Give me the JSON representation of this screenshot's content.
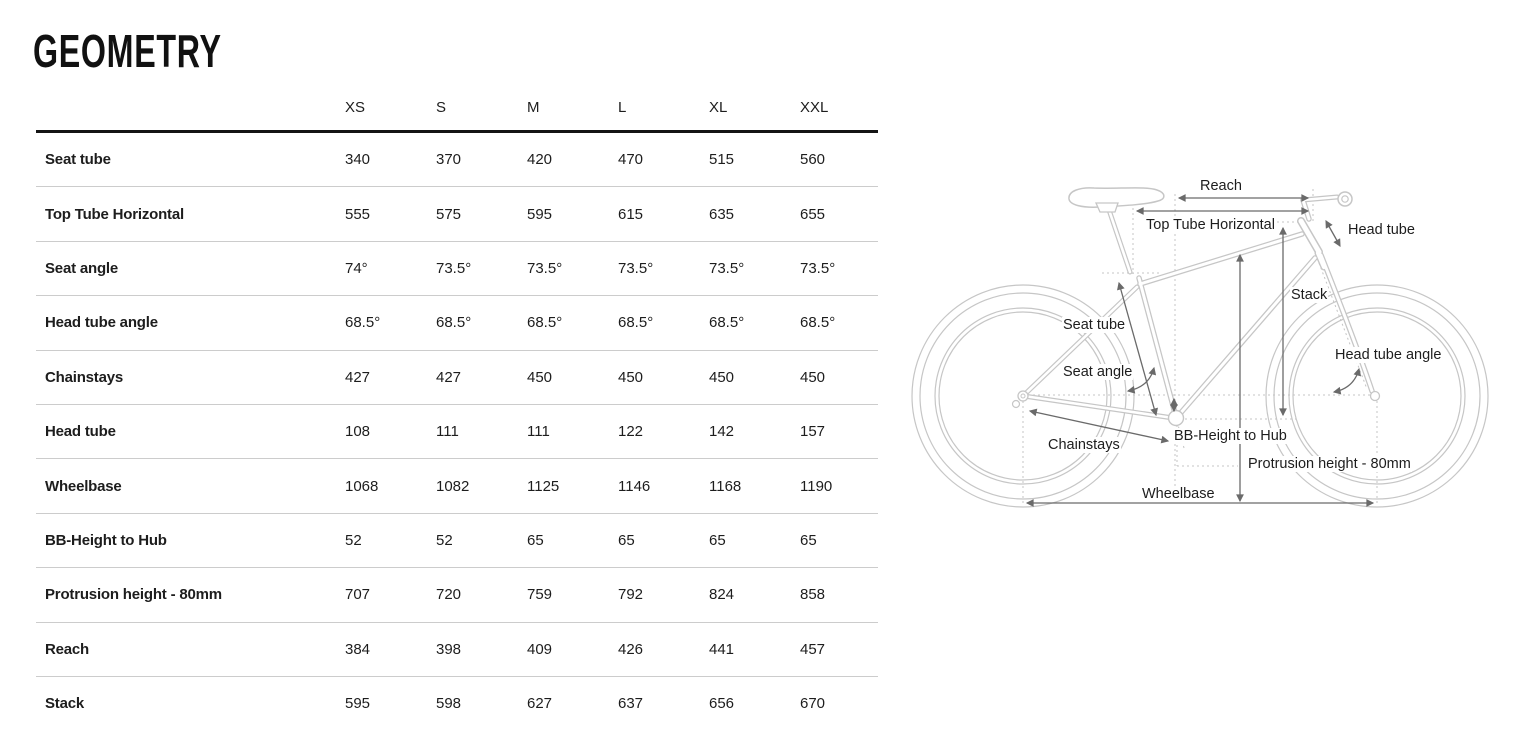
{
  "page": {
    "title": "GEOMETRY"
  },
  "table": {
    "size_headers": [
      "XS",
      "S",
      "M",
      "L",
      "XL",
      "XXL"
    ],
    "rows": [
      {
        "label": "Seat tube",
        "values": [
          "340",
          "370",
          "420",
          "470",
          "515",
          "560"
        ]
      },
      {
        "label": "Top Tube Horizontal",
        "values": [
          "555",
          "575",
          "595",
          "615",
          "635",
          "655"
        ]
      },
      {
        "label": "Seat angle",
        "values": [
          "74°",
          "73.5°",
          "73.5°",
          "73.5°",
          "73.5°",
          "73.5°"
        ]
      },
      {
        "label": "Head tube angle",
        "values": [
          "68.5°",
          "68.5°",
          "68.5°",
          "68.5°",
          "68.5°",
          "68.5°"
        ]
      },
      {
        "label": "Chainstays",
        "values": [
          "427",
          "427",
          "450",
          "450",
          "450",
          "450"
        ]
      },
      {
        "label": "Head tube",
        "values": [
          "108",
          "111",
          "111",
          "122",
          "142",
          "157"
        ]
      },
      {
        "label": "Wheelbase",
        "values": [
          "1068",
          "1082",
          "1125",
          "1146",
          "1168",
          "1190"
        ]
      },
      {
        "label": "BB-Height to Hub",
        "values": [
          "52",
          "52",
          "65",
          "65",
          "65",
          "65"
        ]
      },
      {
        "label": "Protrusion height - 80mm",
        "values": [
          "707",
          "720",
          "759",
          "792",
          "824",
          "858"
        ]
      },
      {
        "label": "Reach",
        "values": [
          "384",
          "398",
          "409",
          "426",
          "441",
          "457"
        ]
      },
      {
        "label": "Stack",
        "values": [
          "595",
          "598",
          "627",
          "637",
          "656",
          "670"
        ]
      }
    ]
  },
  "diagram": {
    "labels": {
      "reach": "Reach",
      "top_tube_horizontal": "Top Tube Horizontal",
      "head_tube": "Head tube",
      "stack": "Stack",
      "seat_tube": "Seat tube",
      "head_tube_angle": "Head tube angle",
      "seat_angle": "Seat angle",
      "chainstays": "Chainstays",
      "bb_height_to_hub": "BB-Height to Hub",
      "protrusion_height": "Protrusion height - 80mm",
      "wheelbase": "Wheelbase"
    }
  },
  "colors": {
    "text": "#1d1d1d",
    "header_rule": "#141414",
    "row_divider": "#cccccc",
    "bike_outline": "#c6c6c6",
    "dimension_arrow": "#6a6a6a"
  }
}
